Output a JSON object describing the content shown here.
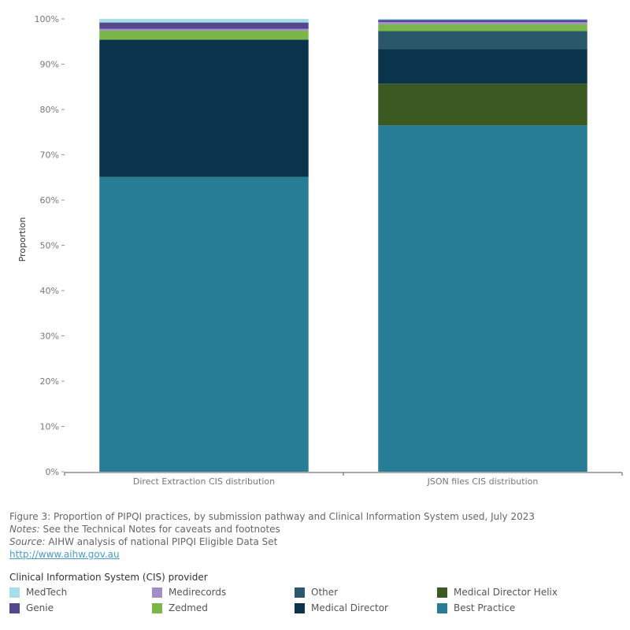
{
  "chart_data": {
    "type": "bar",
    "stacked": true,
    "categories": [
      "Direct Extraction CIS distribution",
      "JSON files CIS distribution"
    ],
    "ylabel": "Proportion",
    "xlabel": "",
    "ylim": [
      0,
      100
    ],
    "ytick_labels": [
      "0%",
      "10%",
      "20%",
      "30%",
      "40%",
      "50%",
      "60%",
      "70%",
      "80%",
      "90%",
      "100%"
    ],
    "grid": false,
    "legend_position": "bottom",
    "series": [
      {
        "name": "Best Practice",
        "color": "#267d95",
        "values": [
          65.1,
          76.5
        ]
      },
      {
        "name": "Medical Director Helix",
        "color": "#3a5a22",
        "values": [
          0.0,
          9.2
        ]
      },
      {
        "name": "Medical Director",
        "color": "#0a344b",
        "values": [
          30.3,
          7.6
        ]
      },
      {
        "name": "Other",
        "color": "#2a5868",
        "values": [
          0.0,
          4.0
        ]
      },
      {
        "name": "Zedmed",
        "color": "#7ab648",
        "values": [
          2.0,
          1.5
        ]
      },
      {
        "name": "Medirecords",
        "color": "#a08fcb",
        "values": [
          0.4,
          0.5
        ]
      },
      {
        "name": "Genie",
        "color": "#54478d",
        "values": [
          1.4,
          0.5
        ]
      },
      {
        "name": "MedTech",
        "color": "#a6dde8",
        "values": [
          0.8,
          0.2
        ]
      }
    ]
  },
  "notes": {
    "figure_caption": "Figure 3: Proportion of PIPQI practices, by submission pathway and Clinical Information System used, July 2023",
    "notes_label": "Notes:",
    "notes_text": " See the Technical Notes for caveats and footnotes",
    "source_label": "Source:",
    "source_text": " AIHW analysis of national PIPQI Eligible Data Set",
    "link": "http://www.aihw.gov.au"
  },
  "legend": {
    "title": "Clinical Information System (CIS) provider",
    "items": [
      {
        "label": "MedTech",
        "color": "#a6dde8"
      },
      {
        "label": "Medirecords",
        "color": "#a08fcb"
      },
      {
        "label": "Other",
        "color": "#2a5868"
      },
      {
        "label": "Medical Director Helix",
        "color": "#3a5a22"
      },
      {
        "label": "Genie",
        "color": "#54478d"
      },
      {
        "label": "Zedmed",
        "color": "#7ab648"
      },
      {
        "label": "Medical Director",
        "color": "#0a344b"
      },
      {
        "label": "Best Practice",
        "color": "#267d95"
      }
    ]
  }
}
